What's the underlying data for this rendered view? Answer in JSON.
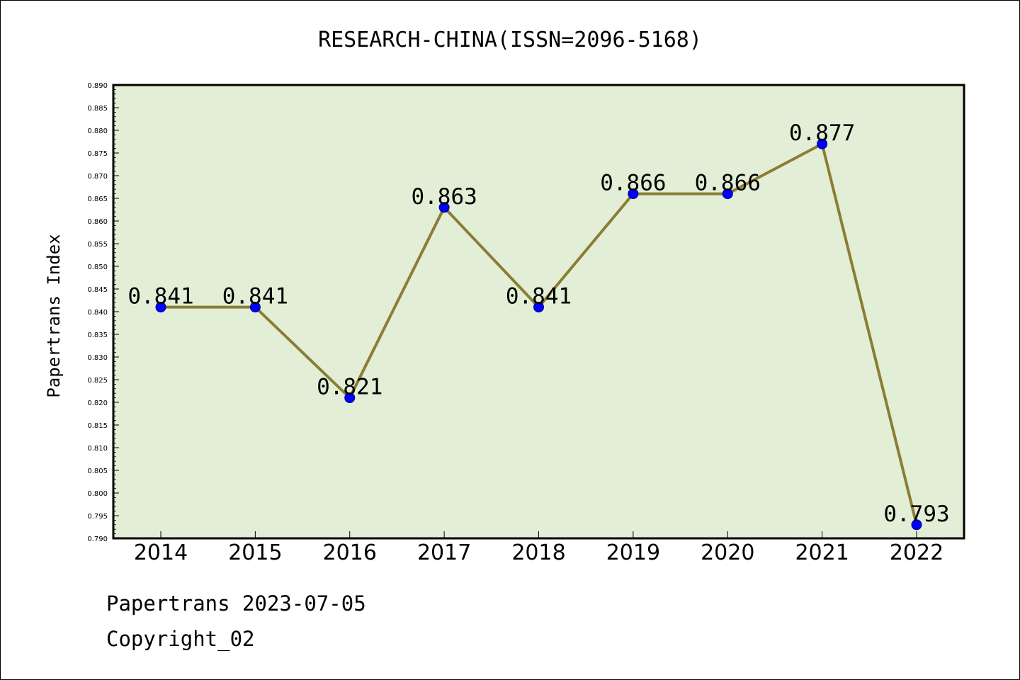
{
  "chart_data": {
    "type": "line",
    "title": "RESEARCH-CHINA(ISSN=2096-5168)",
    "xlabel": "",
    "ylabel": "Papertrans Index",
    "categories": [
      "2014",
      "2015",
      "2016",
      "2017",
      "2018",
      "2019",
      "2020",
      "2021",
      "2022"
    ],
    "values": [
      0.841,
      0.841,
      0.821,
      0.863,
      0.841,
      0.866,
      0.866,
      0.877,
      0.793
    ],
    "data_labels": [
      "0.841",
      "0.841",
      "0.821",
      "0.863",
      "0.841",
      "0.866",
      "0.866",
      "0.877",
      "0.793"
    ],
    "ylim": [
      0.79,
      0.89
    ],
    "ytick_step": 0.005,
    "grid": false,
    "line_color": "#8b7d35",
    "marker_color": "#0000ff",
    "plot_background": "#e2efd6"
  },
  "footer": {
    "line1": "Papertrans 2023-07-05",
    "line2": "Copyright_02"
  }
}
